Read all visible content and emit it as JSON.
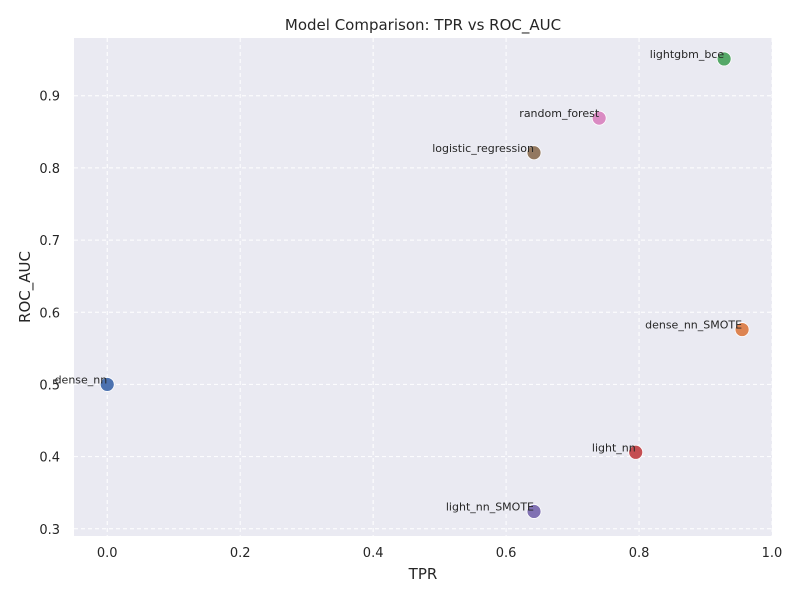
{
  "chart_data": {
    "type": "scatter",
    "title": "Model Comparison: TPR vs ROC_AUC",
    "xlabel": "TPR",
    "ylabel": "ROC_AUC",
    "xlim": [
      -0.05,
      1.0
    ],
    "ylim": [
      0.29,
      0.98
    ],
    "x_ticks": [
      "0.0",
      "0.2",
      "0.4",
      "0.6",
      "0.8",
      "1.0"
    ],
    "y_ticks": [
      "0.3",
      "0.4",
      "0.5",
      "0.6",
      "0.7",
      "0.8",
      "0.9"
    ],
    "grid": true,
    "background_color": "#eaeaf2",
    "points": [
      {
        "label": "dense_nn",
        "x": 0.0,
        "y": 0.5,
        "color": "#4c72b0"
      },
      {
        "label": "dense_nn_SMOTE",
        "x": 0.955,
        "y": 0.576,
        "color": "#dd8452"
      },
      {
        "label": "lightgbm_bce",
        "x": 0.928,
        "y": 0.951,
        "color": "#55a868"
      },
      {
        "label": "light_nn",
        "x": 0.795,
        "y": 0.406,
        "color": "#c44e52"
      },
      {
        "label": "light_nn_SMOTE",
        "x": 0.642,
        "y": 0.324,
        "color": "#8172b3"
      },
      {
        "label": "logistic_regression",
        "x": 0.642,
        "y": 0.821,
        "color": "#937860"
      },
      {
        "label": "random_forest",
        "x": 0.74,
        "y": 0.869,
        "color": "#da8bc3"
      }
    ]
  }
}
